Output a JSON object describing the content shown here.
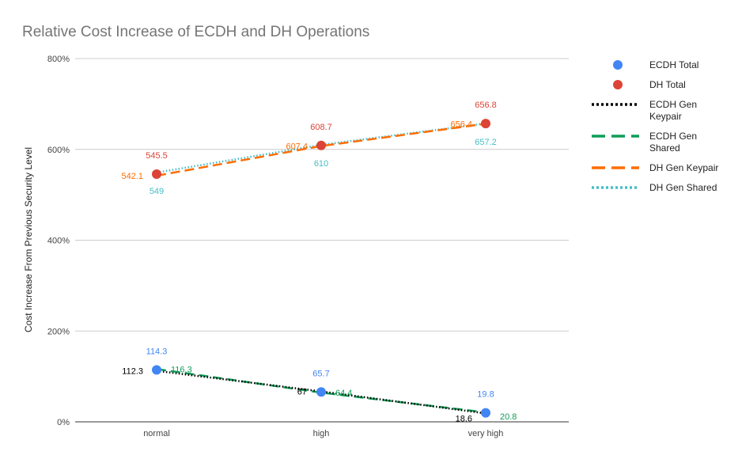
{
  "chart_data": {
    "type": "line",
    "title": "Relative Cost Increase of ECDH and DH Operations",
    "xlabel": "",
    "ylabel": "Cost Increase From Previous Security Level",
    "categories": [
      "normal",
      "high",
      "very high"
    ],
    "ylim": [
      0,
      800
    ],
    "yticks": [
      0,
      200,
      400,
      600,
      800
    ],
    "ytick_labels": [
      "0%",
      "200%",
      "400%",
      "600%",
      "800%"
    ],
    "grid": true,
    "legend_position": "right",
    "series": [
      {
        "name": "ECDH Total",
        "values": [
          114.3,
          65.7,
          19.8
        ],
        "labels": [
          "114.3",
          "65.7",
          "19.8"
        ],
        "color": "#4285f4",
        "style": "points"
      },
      {
        "name": "DH Total",
        "values": [
          545.5,
          608.7,
          656.8
        ],
        "labels": [
          "545.5",
          "608.7",
          "656.8"
        ],
        "color": "#db4437",
        "style": "points"
      },
      {
        "name": "ECDH Gen Keypair",
        "values": [
          112.3,
          67,
          18.6
        ],
        "labels": [
          "112.3",
          "67",
          "18.6"
        ],
        "color": "#000000",
        "style": "dotted"
      },
      {
        "name": "ECDH Gen Shared",
        "values": [
          116.3,
          64.4,
          20.8
        ],
        "labels": [
          "116.3",
          "64.4",
          "20.8"
        ],
        "color": "#0f9d58",
        "style": "dashed"
      },
      {
        "name": "DH Gen Keypair",
        "values": [
          542.1,
          607.4,
          656.4
        ],
        "labels": [
          "542.1",
          "607.4",
          "656.4"
        ],
        "color": "#ff6d00",
        "style": "dashed"
      },
      {
        "name": "DH Gen Shared",
        "values": [
          549,
          610,
          657.2
        ],
        "labels": [
          "549",
          "610",
          "657.2"
        ],
        "color": "#46bdc6",
        "style": "dotted"
      }
    ]
  }
}
